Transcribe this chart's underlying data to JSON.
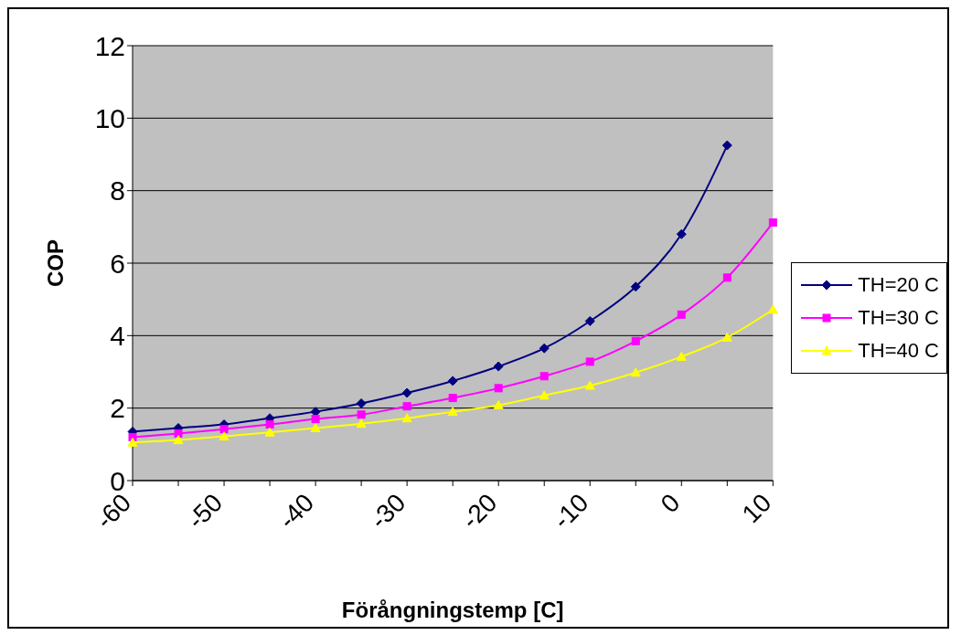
{
  "chart_data": {
    "type": "line",
    "xlabel": "Förångningstemp [C]",
    "ylabel": "COP",
    "categories": [
      "-60",
      null,
      "-50",
      null,
      "-40",
      null,
      "-30",
      null,
      "-20",
      null,
      "-10",
      null,
      "0",
      null,
      "10"
    ],
    "ylim": [
      0,
      12
    ],
    "yticks": [
      0,
      2,
      4,
      6,
      8,
      10,
      12
    ],
    "grid": "y",
    "legend": "right",
    "series": [
      {
        "name": "TH=20 C",
        "color": "#000080",
        "marker": "diamond",
        "values": [
          1.35,
          1.45,
          1.55,
          1.72,
          1.9,
          2.13,
          2.42,
          2.75,
          3.15,
          3.65,
          4.4,
          5.35,
          6.8,
          9.25,
          null
        ]
      },
      {
        "name": "TH=30 C",
        "color": "#ff00ff",
        "marker": "square",
        "values": [
          1.2,
          1.3,
          1.42,
          1.55,
          1.7,
          1.82,
          2.05,
          2.28,
          2.55,
          2.88,
          3.28,
          3.85,
          4.58,
          5.6,
          7.12
        ]
      },
      {
        "name": "TH=40 C",
        "color": "#ffff00",
        "marker": "triangle",
        "values": [
          1.05,
          1.12,
          1.22,
          1.33,
          1.45,
          1.57,
          1.72,
          1.9,
          2.08,
          2.35,
          2.62,
          2.98,
          3.42,
          3.95,
          4.72
        ]
      }
    ]
  }
}
